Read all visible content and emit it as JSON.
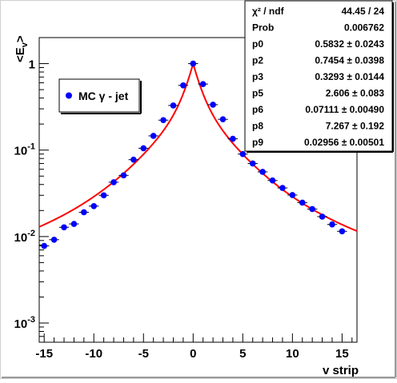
{
  "chart_data": {
    "type": "scatter",
    "title": "",
    "xlabel": "v strip",
    "ylabel": "<E_v>",
    "xlim": [
      -15.5,
      16.5
    ],
    "ylim": [
      0.0006,
      2.0
    ],
    "yscale": "log",
    "grid": false,
    "legend": {
      "placement": "top-left",
      "label": "MC γ - jet",
      "marker_color": "#0000ff"
    },
    "x_ticks": [
      {
        "value": -15,
        "label": "-15"
      },
      {
        "value": -10,
        "label": "-10"
      },
      {
        "value": -5,
        "label": "-5"
      },
      {
        "value": 0,
        "label": "0"
      },
      {
        "value": 5,
        "label": "5"
      },
      {
        "value": 10,
        "label": "10"
      },
      {
        "value": 15,
        "label": "15"
      }
    ],
    "y_ticks": [
      {
        "value": 1,
        "label": "1"
      },
      {
        "value": 0.1,
        "label": "10^-1"
      },
      {
        "value": 0.01,
        "label": "10^-2"
      },
      {
        "value": 0.001,
        "label": "10^-3"
      }
    ],
    "series": [
      {
        "name": "MC γ - jet",
        "color": "#0000ff",
        "points": [
          {
            "x": -15,
            "y": 0.0078
          },
          {
            "x": -14,
            "y": 0.0092
          },
          {
            "x": -13,
            "y": 0.0128
          },
          {
            "x": -12,
            "y": 0.014
          },
          {
            "x": -11,
            "y": 0.0191
          },
          {
            "x": -10,
            "y": 0.0225
          },
          {
            "x": -9,
            "y": 0.03
          },
          {
            "x": -8,
            "y": 0.0425
          },
          {
            "x": -7,
            "y": 0.051
          },
          {
            "x": -6,
            "y": 0.0775
          },
          {
            "x": -5,
            "y": 0.105
          },
          {
            "x": -4,
            "y": 0.146
          },
          {
            "x": -3,
            "y": 0.222
          },
          {
            "x": -2,
            "y": 0.328
          },
          {
            "x": -1,
            "y": 0.56
          },
          {
            "x": 0,
            "y": 1.0
          },
          {
            "x": 1,
            "y": 0.58
          },
          {
            "x": 2,
            "y": 0.335
          },
          {
            "x": 3,
            "y": 0.227
          },
          {
            "x": 4,
            "y": 0.135
          },
          {
            "x": 5,
            "y": 0.09
          },
          {
            "x": 6,
            "y": 0.07
          },
          {
            "x": 7,
            "y": 0.056
          },
          {
            "x": 8,
            "y": 0.0445
          },
          {
            "x": 9,
            "y": 0.0365
          },
          {
            "x": 10,
            "y": 0.0302
          },
          {
            "x": 11,
            "y": 0.0247
          },
          {
            "x": 12,
            "y": 0.0208
          },
          {
            "x": 13,
            "y": 0.017
          },
          {
            "x": 14,
            "y": 0.0138
          },
          {
            "x": 15,
            "y": 0.0115
          }
        ]
      }
    ],
    "fit": {
      "color": "#ff0000",
      "center": 0,
      "peak": 1.0,
      "core_amp": 0.5832,
      "core_width": 0.7454,
      "mid_amp": 0.3293,
      "mid_width": 2.606,
      "tail_amp": 0.07111,
      "tail_width": 7.267,
      "floor": 0.0035
    },
    "stats": {
      "rows": [
        {
          "label": "χ² / ndf",
          "value": "44.45 / 24"
        },
        {
          "label": "Prob",
          "value": "0.006762"
        },
        {
          "label": "p0",
          "value": "0.5832 ± 0.0243"
        },
        {
          "label": "p2",
          "value": "0.7454 ± 0.0398"
        },
        {
          "label": "p3",
          "value": "0.3293 ± 0.0144"
        },
        {
          "label": "p5",
          "value": "2.606 ± 0.083"
        },
        {
          "label": "p6",
          "value": "0.07111 ± 0.00490"
        },
        {
          "label": "p8",
          "value": "7.267 ± 0.192"
        },
        {
          "label": "p9",
          "value": "0.02956 ± 0.00501"
        }
      ]
    }
  }
}
